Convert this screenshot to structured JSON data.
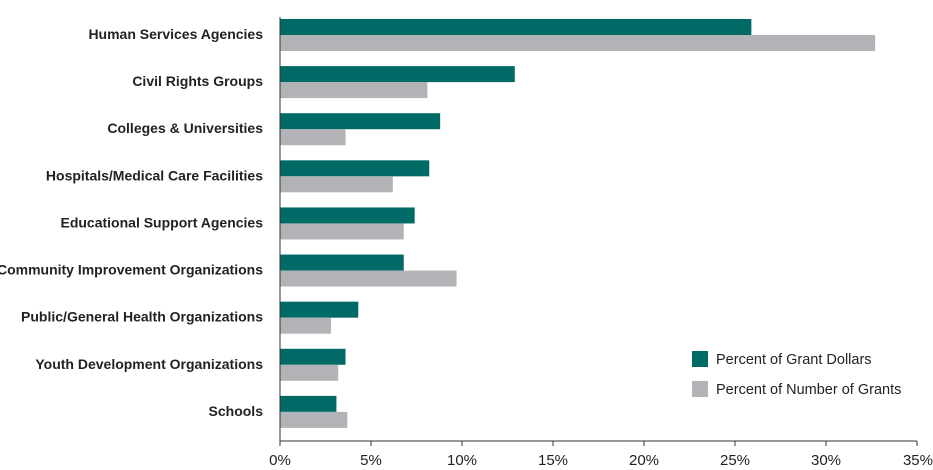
{
  "chart_data": {
    "type": "bar",
    "orientation": "horizontal",
    "categories": [
      "Human Services Agencies",
      "Civil Rights Groups",
      "Colleges & Universities",
      "Hospitals/Medical Care Facilities",
      "Educational Support Agencies",
      "Community Improvement Organizations",
      "Public/General Health Organizations",
      "Youth Development Organizations",
      "Schools"
    ],
    "series": [
      {
        "name": "Percent of Grant Dollars",
        "color": "#006b66",
        "values": [
          25.9,
          12.9,
          8.8,
          8.2,
          7.4,
          6.8,
          4.3,
          3.6,
          3.1
        ]
      },
      {
        "name": "Percent of Number of Grants",
        "color": "#b2b3b6",
        "values": [
          32.7,
          8.1,
          3.6,
          6.2,
          6.8,
          9.7,
          2.8,
          3.2,
          3.7
        ]
      }
    ],
    "xlim": [
      0,
      35
    ],
    "xticks": [
      "0%",
      "5%",
      "10%",
      "15%",
      "20%",
      "25%",
      "30%",
      "35%"
    ],
    "title": "",
    "xlabel": "",
    "ylabel": "",
    "grid": false,
    "legend_position": "bottom-right"
  }
}
